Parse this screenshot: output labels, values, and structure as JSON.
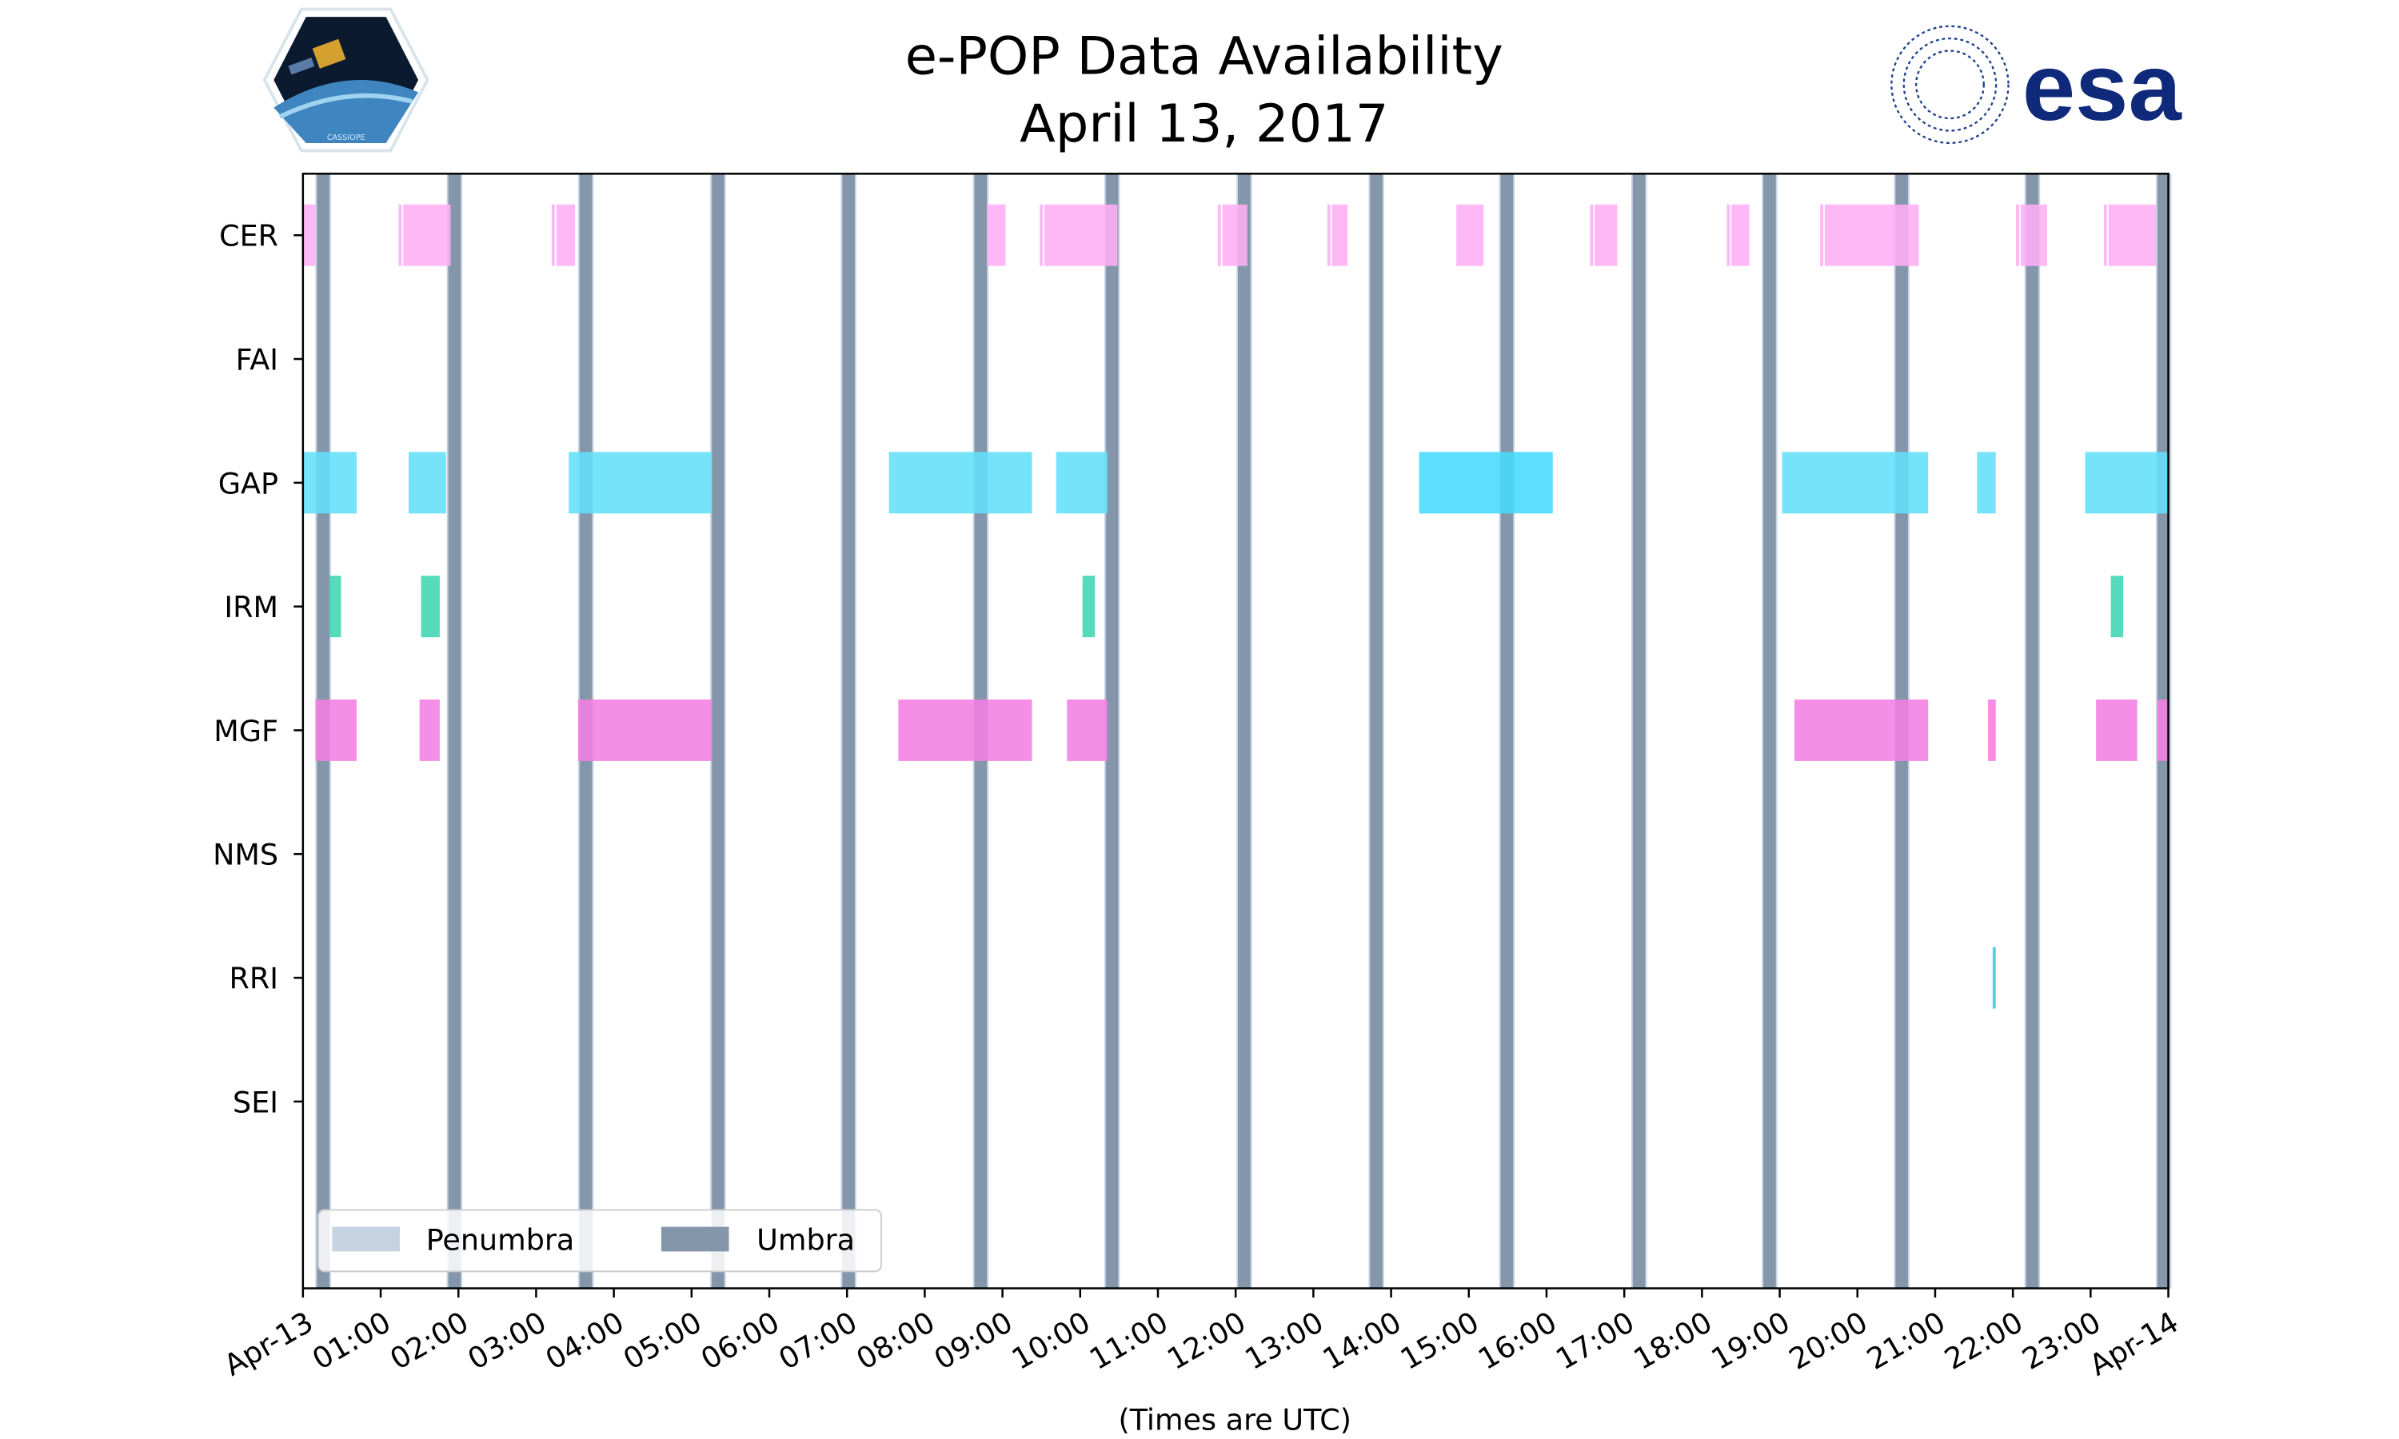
{
  "chart_data": {
    "type": "timeline",
    "title": "e-POP Data Availability",
    "subtitle": "April 13, 2017",
    "xlabel": "(Times are UTC)",
    "xlim_hours": [
      0,
      24
    ],
    "x_tick_labels": [
      "Apr-13",
      "01:00",
      "02:00",
      "03:00",
      "04:00",
      "05:00",
      "06:00",
      "07:00",
      "08:00",
      "09:00",
      "10:00",
      "11:00",
      "12:00",
      "13:00",
      "14:00",
      "15:00",
      "16:00",
      "17:00",
      "18:00",
      "19:00",
      "20:00",
      "21:00",
      "22:00",
      "23:00",
      "Apr-14"
    ],
    "instruments": [
      "CER",
      "FAI",
      "GAP",
      "IRM",
      "MGF",
      "NMS",
      "RRI",
      "SEI"
    ],
    "colors": {
      "CER": "#ffaef5",
      "GAP": "#62e0fb",
      "GAP_alt": "#45dbfc",
      "IRM": "#3dd6b3",
      "MGF": "#f47ee3",
      "RRI": "#3cc8e8",
      "umbra": "#8496a9",
      "penumbra": "#c6d3e3"
    },
    "series": [
      {
        "name": "CER",
        "intervals_hours": [
          [
            0,
            0.16
          ],
          [
            1.23,
            1.27
          ],
          [
            1.29,
            1.9
          ],
          [
            3.2,
            3.24
          ],
          [
            3.26,
            3.5
          ],
          [
            8.8,
            9.04
          ],
          [
            9.48,
            9.52
          ],
          [
            9.54,
            10.48
          ],
          [
            11.77,
            11.81
          ],
          [
            11.83,
            12.15
          ],
          [
            13.18,
            13.22
          ],
          [
            13.24,
            13.44
          ],
          [
            14.84,
            15.19
          ],
          [
            16.56,
            16.6
          ],
          [
            16.62,
            16.91
          ],
          [
            18.32,
            18.36
          ],
          [
            18.38,
            18.61
          ],
          [
            19.52,
            19.56
          ],
          [
            19.58,
            20.79
          ],
          [
            22.04,
            22.08
          ],
          [
            22.1,
            22.44
          ],
          [
            23.17,
            23.21
          ],
          [
            23.23,
            23.84
          ]
        ]
      },
      {
        "name": "FAI",
        "intervals_hours": []
      },
      {
        "name": "GAP",
        "intervals_hours": [
          [
            0,
            0.69
          ],
          [
            1.36,
            1.84
          ],
          [
            3.42,
            5.26
          ],
          [
            7.54,
            9.38
          ],
          [
            9.69,
            10.35
          ],
          [
            14.36,
            16.08
          ],
          [
            19.03,
            20.91
          ],
          [
            21.54,
            21.78
          ],
          [
            22.93,
            24
          ]
        ]
      },
      {
        "name": "IRM",
        "intervals_hours": [
          [
            0.34,
            0.49
          ],
          [
            1.52,
            1.76
          ],
          [
            10.03,
            10.19
          ],
          [
            23.26,
            23.42
          ]
        ]
      },
      {
        "name": "MGF",
        "intervals_hours": [
          [
            0.16,
            0.69
          ],
          [
            1.5,
            1.76
          ],
          [
            3.54,
            5.26
          ],
          [
            7.66,
            9.38
          ],
          [
            9.83,
            10.35
          ],
          [
            19.19,
            20.91
          ],
          [
            21.68,
            21.78
          ],
          [
            23.07,
            23.6
          ],
          [
            23.86,
            24
          ]
        ]
      },
      {
        "name": "NMS",
        "intervals_hours": []
      },
      {
        "name": "RRI",
        "intervals_hours": [
          [
            21.74,
            21.78
          ]
        ]
      },
      {
        "name": "SEI",
        "intervals_hours": []
      }
    ],
    "umbra_centers_hours": [
      0.26,
      1.95,
      3.64,
      5.34,
      7.02,
      8.72,
      10.41,
      12.11,
      13.81,
      15.49,
      17.19,
      18.87,
      20.57,
      22.25,
      23.94
    ],
    "umbra_width_hours": 0.16,
    "legend": {
      "placement": "lower-left",
      "entries": [
        "Penumbra",
        "Umbra"
      ]
    }
  },
  "logos": {
    "left": "CASSIOPE",
    "right": "esa"
  }
}
